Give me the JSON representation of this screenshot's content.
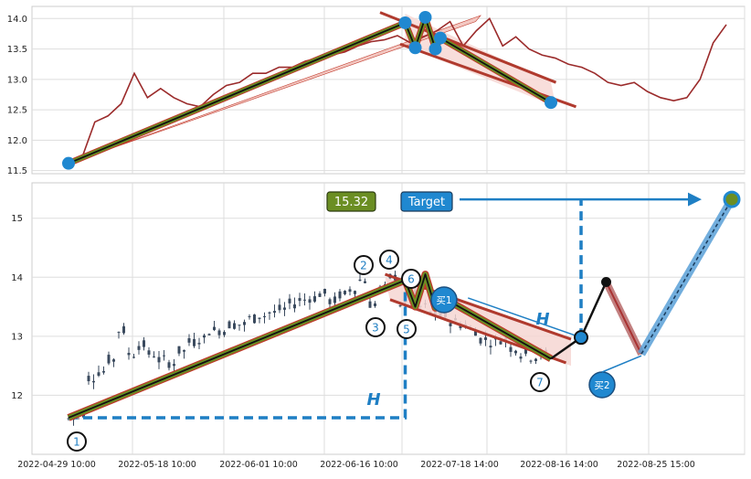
{
  "chart_data": [
    {
      "type": "line",
      "panel": "upper",
      "ylim": [
        11.45,
        14.2
      ],
      "yticks": [
        "11.5",
        "12.0",
        "12.5",
        "13.0",
        "13.5",
        "14.0"
      ],
      "grid": true,
      "series": [
        {
          "x": [
            0,
            2,
            4,
            6,
            8,
            10,
            12,
            14,
            16,
            18,
            20,
            22,
            24,
            26,
            28,
            30,
            32,
            34,
            36,
            38,
            40,
            42,
            44,
            46,
            48,
            50,
            52,
            54,
            56,
            58,
            60,
            62,
            64,
            66,
            68,
            70,
            72,
            74,
            76,
            78,
            80,
            82,
            84,
            86,
            88,
            90,
            92,
            94,
            96,
            98,
            100
          ],
          "values": [
            11.6,
            11.7,
            12.3,
            12.4,
            12.6,
            13.1,
            12.7,
            12.85,
            12.7,
            12.6,
            12.55,
            12.75,
            12.9,
            12.95,
            13.1,
            13.1,
            13.2,
            13.2,
            13.3,
            13.35,
            13.4,
            13.45,
            13.55,
            13.62,
            13.65,
            13.72,
            13.6,
            13.7,
            13.8,
            13.95,
            13.55,
            13.8,
            14.0,
            13.55,
            13.7,
            13.5,
            13.4,
            13.35,
            13.25,
            13.2,
            13.1,
            12.95,
            12.9,
            12.95,
            12.8,
            12.7,
            12.65,
            12.7,
            13.0,
            13.6,
            13.9
          ]
        }
      ],
      "pattern": {
        "points": [
          {
            "x": 0,
            "y": 11.62
          },
          {
            "x": 67,
            "y": 13.93
          },
          {
            "x": 69,
            "y": 13.52
          },
          {
            "x": 71,
            "y": 14.02
          },
          {
            "x": 73,
            "y": 13.5
          },
          {
            "x": 74,
            "y": 13.68
          },
          {
            "x": 96,
            "y": 12.62
          }
        ],
        "arrow_to": {
          "x": 82,
          "y": 14.05
        }
      }
    },
    {
      "type": "candlestick",
      "panel": "lower",
      "ylim": [
        11.0,
        15.6
      ],
      "yticks": [
        "12",
        "13",
        "14",
        "15"
      ],
      "xticks": [
        "2022-04-29 10:00",
        "2022-05-18 10:00",
        "2022-06-01 10:00",
        "2022-06-16 10:00",
        "2022-07-18 14:00",
        "2022-08-16 14:00",
        "2022-08-25 15:00"
      ],
      "grid": true,
      "annotations": {
        "target_label": "Target",
        "target_value": "15.32",
        "target_y": 15.32,
        "height_label": "H",
        "buy_labels": [
          "买1",
          "买2"
        ],
        "point_labels": [
          "1",
          "2",
          "3",
          "4",
          "5",
          "6",
          "7"
        ],
        "pattern_points": [
          {
            "x": 0,
            "y": 11.62
          },
          {
            "x": 67,
            "y": 13.95
          },
          {
            "x": 69,
            "y": 13.5
          },
          {
            "x": 71,
            "y": 14.05
          },
          {
            "x": 73,
            "y": 13.48
          },
          {
            "x": 74,
            "y": 13.68
          },
          {
            "x": 96,
            "y": 12.62
          }
        ],
        "buy1_point": {
          "x": 79.5,
          "y": 13.65
        },
        "breakout_point": {
          "x": 102,
          "y": 12.98
        },
        "peak_point": {
          "x": 107,
          "y": 13.92
        },
        "buy2_point": {
          "x": 114,
          "y": 12.7
        },
        "target_point": {
          "x": 132,
          "y": 15.32
        }
      }
    }
  ]
}
